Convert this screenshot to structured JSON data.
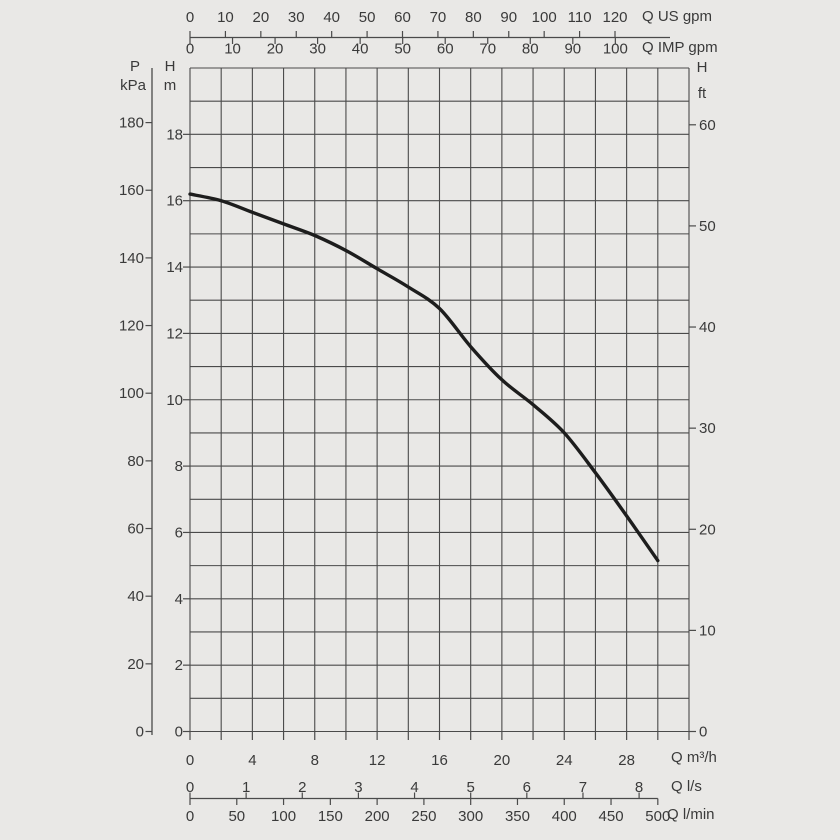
{
  "chart_data": {
    "type": "line",
    "title": "",
    "description": "Pump head-capacity performance curve (H vs Q) with multi-unit conversion scales",
    "colors": {
      "background": "#e9e8e6",
      "grid": "#4a4a4a",
      "text": "#3a3a3a",
      "curve": "#1d1d1d"
    },
    "curve": {
      "name": "head-capacity-curve",
      "x_m3h": [
        0,
        2,
        4,
        6,
        8,
        10,
        12,
        14,
        16,
        18,
        20,
        22,
        24,
        26,
        28,
        30
      ],
      "h_m": [
        16.2,
        16.0,
        15.65,
        15.3,
        14.95,
        14.5,
        13.95,
        13.4,
        12.75,
        11.6,
        10.6,
        9.85,
        9.0,
        7.8,
        6.5,
        5.15
      ]
    },
    "axes": {
      "x_m3h": {
        "label": "Q m³/h",
        "ticks": [
          0,
          4,
          8,
          12,
          16,
          20,
          24,
          28
        ],
        "grid_step": 2,
        "range": [
          0,
          32
        ]
      },
      "x_ls": {
        "label": "Q l/s",
        "ticks": [
          0,
          1,
          2,
          3,
          4,
          5,
          6,
          7,
          8
        ],
        "factor_to_m3h": 3.6
      },
      "x_lmin": {
        "label": "Q l/min",
        "ticks": [
          0,
          50,
          100,
          150,
          200,
          250,
          300,
          350,
          400,
          450,
          500
        ],
        "factor_to_m3h": 0.06
      },
      "x_top_us": {
        "label": "Q US gpm",
        "ticks": [
          0,
          10,
          20,
          30,
          40,
          50,
          60,
          70,
          80,
          90,
          100,
          110,
          120
        ],
        "factor_to_m3h": 0.227125
      },
      "x_top_imp": {
        "label": "Q IMP gpm",
        "ticks": [
          0,
          10,
          20,
          30,
          40,
          50,
          60,
          70,
          80,
          90,
          100
        ],
        "factor_to_m3h": 0.272766
      },
      "y_m": {
        "symbol": "H",
        "unit": "m",
        "ticks": [
          0,
          2,
          4,
          6,
          8,
          10,
          12,
          14,
          16,
          18
        ],
        "range": [
          0,
          20
        ],
        "grid_step": 1
      },
      "y_kpa": {
        "symbol": "P",
        "unit": "kPa",
        "ticks": [
          0,
          20,
          40,
          60,
          80,
          100,
          120,
          140,
          160,
          180
        ],
        "factor_to_m": 0.10197
      },
      "y_ft": {
        "symbol": "H",
        "unit": "ft",
        "ticks": [
          0,
          10,
          20,
          30,
          40,
          50,
          60
        ],
        "factor_to_m": 0.3048
      }
    },
    "legend": {
      "visible": false
    },
    "grid": "on"
  }
}
